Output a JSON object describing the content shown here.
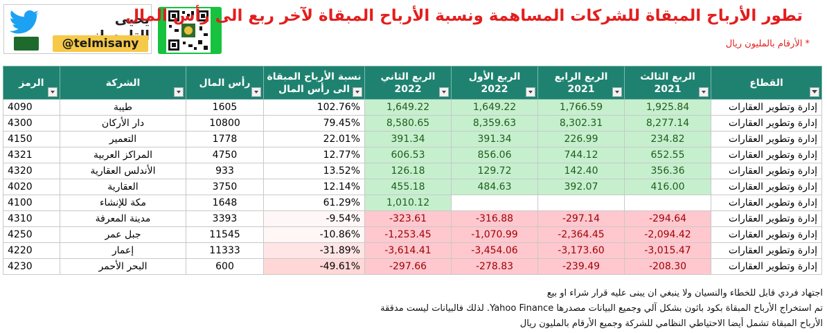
{
  "header": {
    "title": "تطور الأرباح المبقاة للشركات المساهمة ونسبة الأرباح المبقاة لآخر ربع الى رأس المال",
    "subtitle": "* الأرقام بالمليون ريال",
    "brand_name": "يحيى التلمساني",
    "brand_handle": "@telmisany",
    "icons": [
      "twitter-bird-icon",
      "saudi-flag-icon",
      "qr-code-icon"
    ],
    "colors": {
      "title": "#e31d1d",
      "header_bg": "#1f8270",
      "positive_fill": "#c6efce",
      "negative_fill": "#ffc7ce",
      "handle_bg": "#f6c948",
      "qr_bg": "#17c23f"
    }
  },
  "table": {
    "columns": {
      "code": "الرمز",
      "company": "الشركة",
      "capital": "رأس المال",
      "ratio_line1": "نسبة الأرباح المبقاة",
      "ratio_line2": "الى رأس المال",
      "q2_2022_line1": "الربع الثاني",
      "q2_2022_line2": "2022",
      "q1_2022_line1": "الربع الأول",
      "q1_2022_line2": "2022",
      "q4_2021_line1": "الربع الرابع",
      "q4_2021_line2": "2021",
      "q3_2021_line1": "الربع الثالث",
      "q3_2021_line2": "2021",
      "sector": "القطاع"
    },
    "rows": [
      {
        "code": "4090",
        "company": "طيبة",
        "capital": "1605",
        "ratio": "102.76%",
        "q2_2022": "1,649.22",
        "q1_2022": "1,649.22",
        "q4_2021": "1,766.59",
        "q3_2021": "1,925.84",
        "sector": "إدارة وتطوير العقارات"
      },
      {
        "code": "4300",
        "company": "دار الأركان",
        "capital": "10800",
        "ratio": "79.45%",
        "q2_2022": "8,580.65",
        "q1_2022": "8,359.63",
        "q4_2021": "8,302.31",
        "q3_2021": "8,277.14",
        "sector": "إدارة وتطوير العقارات"
      },
      {
        "code": "4150",
        "company": "التعمير",
        "capital": "1778",
        "ratio": "22.01%",
        "q2_2022": "391.34",
        "q1_2022": "391.34",
        "q4_2021": "226.99",
        "q3_2021": "234.82",
        "sector": "إدارة وتطوير العقارات"
      },
      {
        "code": "4321",
        "company": "المراكز العربية",
        "capital": "4750",
        "ratio": "12.77%",
        "q2_2022": "606.53",
        "q1_2022": "856.06",
        "q4_2021": "744.12",
        "q3_2021": "652.55",
        "sector": "إدارة وتطوير العقارات"
      },
      {
        "code": "4320",
        "company": "الأندلس العقارية",
        "capital": "933",
        "ratio": "13.52%",
        "q2_2022": "126.18",
        "q1_2022": "129.72",
        "q4_2021": "142.40",
        "q3_2021": "356.36",
        "sector": "إدارة وتطوير العقارات"
      },
      {
        "code": "4020",
        "company": "العقارية",
        "capital": "3750",
        "ratio": "12.14%",
        "q2_2022": "455.18",
        "q1_2022": "484.63",
        "q4_2021": "392.07",
        "q3_2021": "416.00",
        "sector": "إدارة وتطوير العقارات"
      },
      {
        "code": "4100",
        "company": "مكة للإنشاء",
        "capital": "1648",
        "ratio": "61.29%",
        "q2_2022": "1,010.12",
        "q1_2022": "",
        "q4_2021": "",
        "q3_2021": "",
        "sector": "إدارة وتطوير العقارات"
      },
      {
        "code": "4310",
        "company": "مدينة المعرفة",
        "capital": "3393",
        "ratio": "-9.54%",
        "q2_2022": "-323.61",
        "q1_2022": "-316.88",
        "q4_2021": "-297.14",
        "q3_2021": "-294.64",
        "sector": "إدارة وتطوير العقارات"
      },
      {
        "code": "4250",
        "company": "جبل عمر",
        "capital": "11545",
        "ratio": "-10.86%",
        "q2_2022": "-1,253.45",
        "q1_2022": "-1,070.99",
        "q4_2021": "-2,364.45",
        "q3_2021": "-2,094.42",
        "sector": "إدارة وتطوير العقارات"
      },
      {
        "code": "4220",
        "company": "إعمار",
        "capital": "11333",
        "ratio": "-31.89%",
        "q2_2022": "-3,614.41",
        "q1_2022": "-3,454.06",
        "q4_2021": "-3,173.60",
        "q3_2021": "-3,015.47",
        "sector": "إدارة وتطوير العقارات"
      },
      {
        "code": "4230",
        "company": "البحر الأحمر",
        "capital": "600",
        "ratio": "-49.61%",
        "q2_2022": "-297.66",
        "q1_2022": "-278.83",
        "q4_2021": "-239.49",
        "q3_2021": "-208.30",
        "sector": "إدارة وتطوير العقارات"
      }
    ],
    "ratio_values": [
      102.76,
      79.45,
      22.01,
      12.77,
      13.52,
      12.14,
      61.29,
      -9.54,
      -10.86,
      -31.89,
      -49.61
    ]
  },
  "notes": [
    "اجتهاد فردي قابل للخطاء والنسيان ولا ينبغي ان يبنى عليه قرار شراء او بيع",
    "تم استخراج الأرباح المبقاة بكود باثون بشكل آلي وجميع البيانات مصدرها Yahoo Finance. لذلك فالبيانات ليست مدققة",
    "الأرباح المبقاة تشمل أيضا الاحتياطي النظامي للشركة وجميع الأرقام بالمليون ريال"
  ]
}
